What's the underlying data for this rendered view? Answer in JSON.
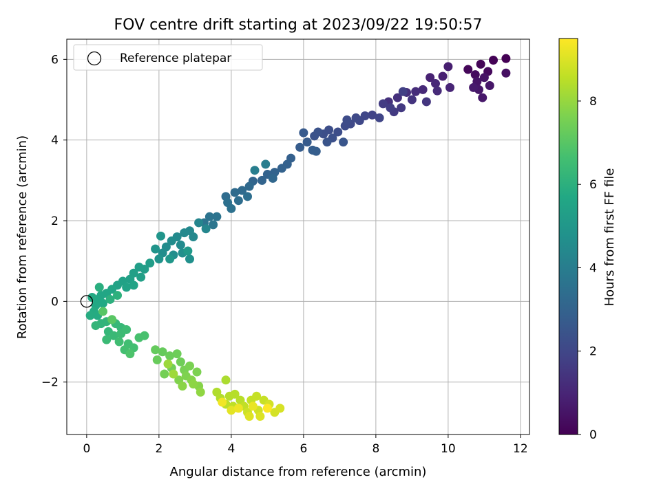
{
  "chart_data": {
    "type": "scatter",
    "title": "FOV centre drift starting at 2023/09/22 19:50:57",
    "xlabel": "Angular distance from reference (arcmin)",
    "ylabel": "Rotation from reference (arcmin)",
    "xlim": [
      -0.55,
      12.25
    ],
    "ylim": [
      -3.3,
      6.5
    ],
    "x_ticks": [
      0,
      2,
      4,
      6,
      8,
      10,
      12
    ],
    "x_tick_labels": [
      "0",
      "2",
      "4",
      "6",
      "8",
      "10",
      "12"
    ],
    "y_ticks": [
      -2,
      0,
      2,
      4,
      6
    ],
    "y_tick_labels": [
      "−2",
      "0",
      "2",
      "4",
      "6"
    ],
    "grid": true,
    "legend": {
      "placement": "top-left",
      "entries": [
        {
          "label": "Reference platepar",
          "marker": "open-circle"
        }
      ]
    },
    "reference_point": {
      "x": 0,
      "y": 0
    },
    "colorbar": {
      "label": "Hours from first FF file",
      "range": [
        0,
        9.5
      ],
      "ticks": [
        0,
        2,
        4,
        6,
        8
      ],
      "tick_labels": [
        "0",
        "2",
        "4",
        "6",
        "8"
      ],
      "colormap": "viridis"
    },
    "point_spread_note": "",
    "series": [
      {
        "points": [
          [
            11.6,
            6.02
          ],
          [
            11.25,
            5.98
          ],
          [
            10.9,
            5.88
          ],
          [
            10.55,
            5.75
          ],
          [
            11.1,
            5.7
          ],
          [
            10.75,
            5.62
          ],
          [
            11.6,
            5.66
          ],
          [
            11.0,
            5.55
          ],
          [
            10.8,
            5.45
          ],
          [
            11.15,
            5.35
          ],
          [
            10.85,
            5.25
          ],
          [
            10.95,
            5.05
          ],
          [
            10.7,
            5.3
          ],
          [
            10.0,
            5.82
          ],
          [
            9.85,
            5.58
          ],
          [
            9.5,
            5.55
          ],
          [
            10.05,
            5.3
          ],
          [
            9.65,
            5.4
          ],
          [
            9.3,
            5.25
          ],
          [
            9.7,
            5.22
          ],
          [
            9.1,
            5.2
          ],
          [
            8.85,
            5.18
          ],
          [
            8.6,
            5.05
          ],
          [
            8.35,
            4.95
          ],
          [
            9.0,
            5.0
          ],
          [
            9.4,
            4.95
          ],
          [
            8.7,
            4.8
          ],
          [
            8.5,
            4.7
          ],
          [
            8.2,
            4.9
          ],
          [
            8.4,
            4.8
          ],
          [
            8.75,
            5.2
          ],
          [
            7.9,
            4.62
          ],
          [
            8.1,
            4.55
          ],
          [
            7.7,
            4.6
          ],
          [
            7.55,
            4.48
          ],
          [
            7.3,
            4.4
          ],
          [
            7.45,
            4.55
          ],
          [
            7.15,
            4.35
          ],
          [
            7.2,
            4.5
          ],
          [
            6.95,
            4.2
          ],
          [
            6.7,
            4.25
          ],
          [
            6.55,
            4.15
          ],
          [
            6.8,
            4.05
          ],
          [
            6.4,
            4.2
          ],
          [
            6.3,
            4.1
          ],
          [
            6.65,
            3.95
          ],
          [
            7.1,
            3.95
          ],
          [
            6.0,
            4.18
          ],
          [
            6.1,
            3.95
          ],
          [
            5.9,
            3.82
          ],
          [
            6.35,
            3.72
          ],
          [
            6.25,
            3.75
          ],
          [
            5.65,
            3.55
          ],
          [
            5.55,
            3.4
          ],
          [
            5.4,
            3.3
          ],
          [
            5.2,
            3.2
          ],
          [
            5.0,
            3.15
          ],
          [
            4.85,
            3.0
          ],
          [
            4.6,
            2.98
          ],
          [
            5.15,
            3.05
          ],
          [
            4.5,
            2.85
          ],
          [
            4.3,
            2.75
          ],
          [
            4.1,
            2.7
          ],
          [
            3.85,
            2.6
          ],
          [
            4.2,
            2.5
          ],
          [
            4.45,
            2.6
          ],
          [
            3.9,
            2.45
          ],
          [
            4.0,
            2.3
          ],
          [
            3.6,
            2.1
          ],
          [
            3.4,
            2.1
          ],
          [
            3.25,
            1.95
          ],
          [
            3.5,
            1.9
          ],
          [
            4.95,
            3.4
          ],
          [
            4.65,
            3.25
          ],
          [
            3.1,
            1.95
          ],
          [
            3.3,
            1.8
          ],
          [
            2.95,
            1.6
          ],
          [
            2.85,
            1.75
          ],
          [
            2.7,
            1.7
          ],
          [
            2.5,
            1.6
          ],
          [
            2.6,
            1.4
          ],
          [
            2.35,
            1.5
          ],
          [
            2.2,
            1.35
          ],
          [
            2.1,
            1.2
          ],
          [
            2.4,
            1.15
          ],
          [
            2.65,
            1.2
          ],
          [
            2.85,
            1.05
          ],
          [
            2.0,
            1.05
          ],
          [
            1.9,
            1.3
          ],
          [
            2.05,
            1.62
          ],
          [
            2.3,
            1.05
          ],
          [
            2.8,
            1.25
          ],
          [
            1.75,
            0.95
          ],
          [
            1.6,
            0.8
          ],
          [
            1.45,
            0.85
          ],
          [
            1.3,
            0.7
          ],
          [
            1.5,
            0.6
          ],
          [
            1.2,
            0.55
          ],
          [
            1.0,
            0.5
          ],
          [
            0.85,
            0.4
          ],
          [
            1.1,
            0.35
          ],
          [
            1.3,
            0.4
          ],
          [
            0.7,
            0.3
          ],
          [
            0.55,
            0.2
          ],
          [
            0.4,
            0.15
          ],
          [
            0.3,
            0.05
          ],
          [
            0.45,
            -0.05
          ],
          [
            0.25,
            -0.1
          ],
          [
            0.15,
            0.1
          ],
          [
            0.2,
            -0.25
          ],
          [
            0.3,
            -0.35
          ],
          [
            0.1,
            -0.35
          ],
          [
            0.35,
            0.35
          ],
          [
            0.65,
            0.05
          ],
          [
            0.85,
            0.15
          ],
          [
            0.4,
            -0.55
          ],
          [
            0.55,
            -0.5
          ],
          [
            0.25,
            -0.6
          ],
          [
            0.6,
            -0.75
          ],
          [
            0.8,
            -0.55
          ],
          [
            0.95,
            -0.65
          ],
          [
            0.75,
            -0.85
          ],
          [
            0.55,
            -0.95
          ],
          [
            0.95,
            -0.8
          ],
          [
            1.1,
            -0.7
          ],
          [
            0.9,
            -1.0
          ],
          [
            1.15,
            -1.05
          ],
          [
            1.3,
            -1.15
          ],
          [
            1.05,
            -1.2
          ],
          [
            1.45,
            -0.9
          ],
          [
            1.6,
            -0.85
          ],
          [
            1.2,
            -1.3
          ],
          [
            0.45,
            -0.25
          ],
          [
            0.7,
            -0.45
          ],
          [
            1.9,
            -1.2
          ],
          [
            2.1,
            -1.25
          ],
          [
            1.95,
            -1.45
          ],
          [
            2.3,
            -1.35
          ],
          [
            2.5,
            -1.3
          ],
          [
            2.6,
            -1.5
          ],
          [
            2.35,
            -1.65
          ],
          [
            2.15,
            -1.8
          ],
          [
            2.7,
            -1.7
          ],
          [
            2.85,
            -1.6
          ],
          [
            3.05,
            -1.75
          ],
          [
            2.75,
            -1.85
          ],
          [
            2.55,
            -1.95
          ],
          [
            2.9,
            -1.95
          ],
          [
            3.1,
            -2.1
          ],
          [
            2.65,
            -2.1
          ],
          [
            2.95,
            -2.05
          ],
          [
            3.15,
            -2.25
          ],
          [
            2.25,
            -1.55
          ],
          [
            2.4,
            -1.8
          ],
          [
            3.85,
            -1.95
          ],
          [
            3.6,
            -2.25
          ],
          [
            3.7,
            -2.4
          ],
          [
            3.95,
            -2.35
          ],
          [
            4.1,
            -2.3
          ],
          [
            4.25,
            -2.45
          ],
          [
            3.85,
            -2.55
          ],
          [
            4.05,
            -2.6
          ],
          [
            4.35,
            -2.6
          ],
          [
            4.55,
            -2.45
          ],
          [
            4.7,
            -2.35
          ],
          [
            4.9,
            -2.45
          ],
          [
            4.45,
            -2.75
          ],
          [
            4.75,
            -2.7
          ],
          [
            5.05,
            -2.55
          ],
          [
            5.2,
            -2.75
          ],
          [
            5.35,
            -2.65
          ],
          [
            4.8,
            -2.85
          ],
          [
            4.5,
            -2.85
          ],
          [
            4.0,
            -2.7
          ],
          [
            4.6,
            -2.6
          ],
          [
            4.2,
            -2.65
          ],
          [
            3.75,
            -2.5
          ],
          [
            5.0,
            -2.65
          ]
        ]
      }
    ]
  }
}
